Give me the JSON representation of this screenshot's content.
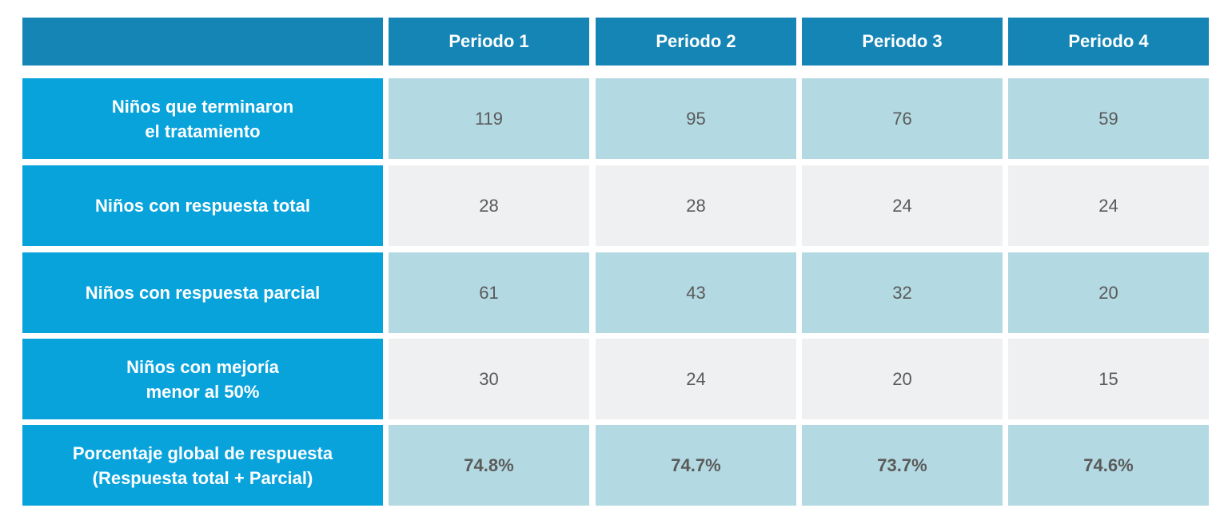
{
  "chart_data": {
    "type": "table",
    "columns": [
      "Periodo 1",
      "Periodo 2",
      "Periodo 3",
      "Periodo 4"
    ],
    "rows": [
      {
        "label": "Niños que terminaron\nel tratamiento",
        "values": [
          "119",
          "95",
          "76",
          "59"
        ],
        "emphasis": false
      },
      {
        "label": "Niños con respuesta total",
        "values": [
          "28",
          "28",
          "24",
          "24"
        ],
        "emphasis": false
      },
      {
        "label": "Niños con respuesta parcial",
        "values": [
          "61",
          "43",
          "32",
          "20"
        ],
        "emphasis": false
      },
      {
        "label": "Niños con mejoría\nmenor al 50%",
        "values": [
          "30",
          "24",
          "20",
          "15"
        ],
        "emphasis": false
      },
      {
        "label": "Porcentaje global de respuesta\n(Respuesta total + Parcial)",
        "values": [
          "74.8%",
          "74.7%",
          "73.7%",
          "74.6%"
        ],
        "emphasis": true
      }
    ]
  },
  "colors": {
    "column_header": "#1585b6",
    "row_header": "#09a3dc",
    "cell_dark": "#b3d9e2",
    "cell_light": "#eff0f2",
    "header_text": "#ffffff",
    "cell_text": "#5a5a5a"
  }
}
